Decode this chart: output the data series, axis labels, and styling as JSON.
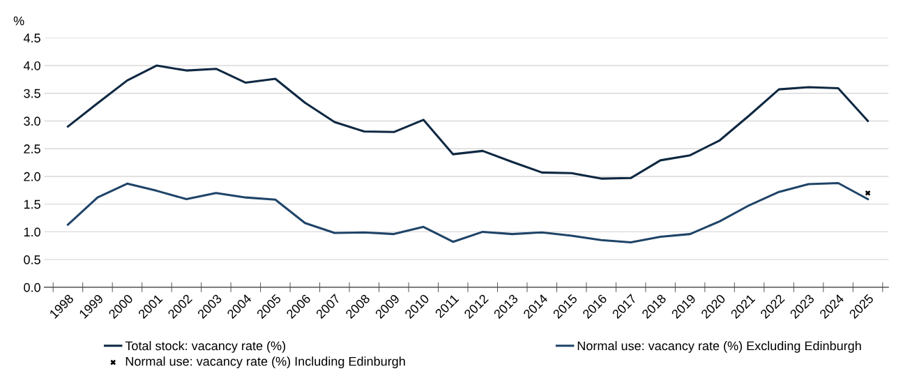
{
  "chart_data": {
    "type": "line",
    "ylabel": "%",
    "categories": [
      "1998",
      "1999",
      "2000",
      "2001",
      "2002",
      "2003",
      "2004",
      "2005",
      "2006",
      "2007",
      "2008",
      "2009",
      "2010",
      "2011",
      "2012",
      "2013",
      "2014",
      "2015",
      "2016",
      "2017",
      "2018",
      "2019",
      "2020",
      "2021",
      "2022",
      "2023",
      "2024",
      "2025"
    ],
    "series": [
      {
        "name": "Total stock: vacancy rate (%)",
        "color": "#0e2841",
        "values": [
          2.9,
          3.32,
          3.73,
          4.0,
          3.91,
          3.94,
          3.69,
          3.76,
          3.33,
          2.98,
          2.81,
          2.8,
          3.02,
          2.4,
          2.46,
          2.26,
          2.07,
          2.06,
          1.96,
          1.97,
          2.29,
          2.38,
          2.65,
          3.1,
          3.57,
          3.61,
          3.59,
          3.0
        ]
      },
      {
        "name": "Normal use: vacancy rate (%) Excluding Edinburgh",
        "color": "#1f4468",
        "values": [
          1.13,
          1.62,
          1.87,
          1.74,
          1.59,
          1.7,
          1.62,
          1.58,
          1.16,
          0.98,
          0.99,
          0.96,
          1.09,
          0.82,
          1.0,
          0.96,
          0.99,
          0.93,
          0.85,
          0.81,
          0.91,
          0.96,
          1.19,
          1.48,
          1.72,
          1.86,
          1.88,
          1.59
        ]
      },
      {
        "name": "Normal use: vacancy rate (%) Including Edinburgh",
        "type": "scatter",
        "marker": "cross",
        "color": "#000000",
        "values": [
          null,
          null,
          null,
          null,
          null,
          null,
          null,
          null,
          null,
          null,
          null,
          null,
          null,
          null,
          null,
          null,
          null,
          null,
          null,
          null,
          null,
          null,
          null,
          null,
          null,
          null,
          null,
          1.7
        ]
      }
    ],
    "ylim": [
      0,
      4.5
    ],
    "yticks": [
      {
        "value": 0,
        "label": "0.0"
      },
      {
        "value": 0.5,
        "label": "0.5"
      },
      {
        "value": 1,
        "label": "1.0"
      },
      {
        "value": 1.5,
        "label": "1.5"
      },
      {
        "value": 2,
        "label": "2.0"
      },
      {
        "value": 2.5,
        "label": "2.5"
      },
      {
        "value": 3,
        "label": "3.0"
      },
      {
        "value": 3.5,
        "label": "3.5"
      },
      {
        "value": 4,
        "label": "4.0"
      },
      {
        "value": 4.5,
        "label": "4.5"
      }
    ],
    "grid": "y",
    "legend": "bottom",
    "marker": "none",
    "line_style": "solid"
  }
}
